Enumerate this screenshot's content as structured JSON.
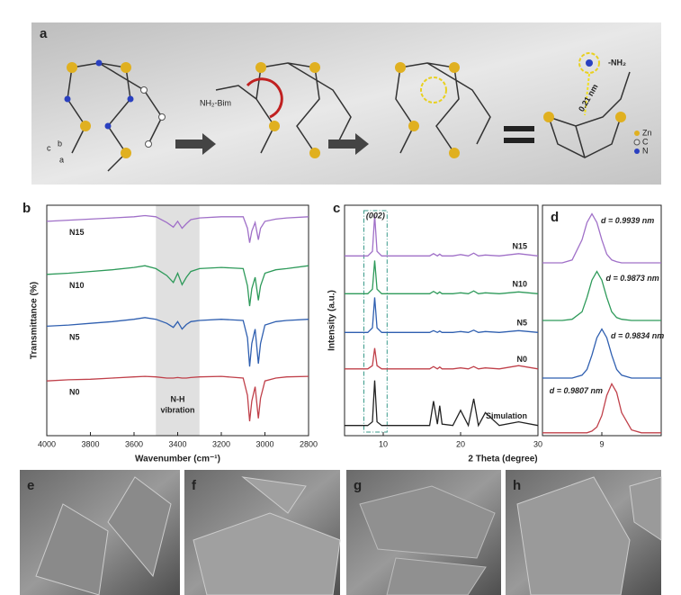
{
  "panel_a": {
    "label": "a",
    "reagent": "NH₂-Bim",
    "group": "-NH₂",
    "distance": "0.21 nm",
    "axes": [
      "c",
      "b",
      "a"
    ],
    "legend": [
      "Zn",
      "C",
      "N"
    ]
  },
  "chart_data": [
    {
      "type": "line",
      "panel_label": "b",
      "xlabel": "Wavenumber (cm⁻¹)",
      "ylabel": "Transmittance (%)",
      "x": [
        4000,
        3900,
        3800,
        3700,
        3600,
        3550,
        3500,
        3450,
        3420,
        3400,
        3380,
        3360,
        3340,
        3300,
        3200,
        3100,
        3080,
        3070,
        3060,
        3045,
        3030,
        3020,
        3000,
        2950,
        2900,
        2800
      ],
      "xlim": [
        4000,
        2800
      ],
      "xticks": [
        4000,
        3800,
        3600,
        3400,
        3200,
        3000,
        2800
      ],
      "ylim": [
        0,
        4
      ],
      "shaded_range": [
        3500,
        3300
      ],
      "annotation": [
        "N-H",
        "vibration"
      ],
      "series": [
        {
          "name": "N15",
          "color": "#a070c8",
          "values": [
            3.72,
            3.74,
            3.76,
            3.78,
            3.8,
            3.82,
            3.8,
            3.7,
            3.62,
            3.72,
            3.6,
            3.68,
            3.75,
            3.78,
            3.8,
            3.8,
            3.6,
            3.35,
            3.55,
            3.7,
            3.4,
            3.6,
            3.72,
            3.76,
            3.78,
            3.8
          ]
        },
        {
          "name": "N10",
          "color": "#2e9a5a",
          "values": [
            2.8,
            2.82,
            2.85,
            2.88,
            2.92,
            2.95,
            2.9,
            2.78,
            2.66,
            2.82,
            2.62,
            2.75,
            2.85,
            2.9,
            2.92,
            2.9,
            2.6,
            2.25,
            2.55,
            2.75,
            2.35,
            2.6,
            2.82,
            2.88,
            2.9,
            2.95
          ]
        },
        {
          "name": "N5",
          "color": "#2f5fb0",
          "values": [
            1.9,
            1.92,
            1.95,
            1.98,
            2.02,
            2.05,
            2.02,
            1.95,
            1.88,
            1.98,
            1.85,
            1.93,
            1.98,
            2.0,
            2.02,
            2.0,
            1.7,
            1.2,
            1.6,
            1.85,
            1.25,
            1.6,
            1.92,
            1.98,
            2.0,
            2.02
          ]
        },
        {
          "name": "N0",
          "color": "#c0404a",
          "values": [
            0.95,
            0.97,
            0.98,
            1.0,
            1.02,
            1.03,
            1.02,
            1.0,
            1.0,
            1.01,
            1.0,
            1.0,
            1.01,
            1.02,
            1.03,
            1.0,
            0.7,
            0.25,
            0.6,
            0.85,
            0.3,
            0.65,
            0.95,
            1.0,
            1.02,
            1.03
          ]
        }
      ]
    },
    {
      "type": "line",
      "panel_label": "c",
      "xlabel": "2 Theta (degree)",
      "ylabel": "Intensity (a.u.)",
      "x": [
        5,
        8,
        8.6,
        8.9,
        9.2,
        9.8,
        12,
        16,
        16.5,
        17,
        17.3,
        17.6,
        19,
        20,
        21,
        21.7,
        22.3,
        23.2,
        25,
        27.5,
        30
      ],
      "xlim": [
        5,
        30
      ],
      "xticks": [
        10,
        20,
        30
      ],
      "ylim": [
        0,
        5
      ],
      "highlight_range": [
        7.5,
        10.5
      ],
      "annotation": "(002)",
      "series": [
        {
          "name": "N15",
          "color": "#a070c8",
          "values": [
            3.9,
            3.9,
            4.0,
            4.78,
            4.0,
            3.9,
            3.9,
            3.9,
            3.95,
            3.9,
            3.94,
            3.9,
            3.9,
            3.93,
            3.9,
            3.96,
            3.9,
            3.92,
            3.9,
            3.95,
            3.9
          ]
        },
        {
          "name": "N10",
          "color": "#2e9a5a",
          "values": [
            3.08,
            3.08,
            3.18,
            3.8,
            3.18,
            3.08,
            3.08,
            3.08,
            3.13,
            3.08,
            3.12,
            3.08,
            3.08,
            3.1,
            3.08,
            3.14,
            3.08,
            3.1,
            3.08,
            3.12,
            3.08
          ]
        },
        {
          "name": "N5",
          "color": "#2f5fb0",
          "values": [
            2.24,
            2.24,
            2.34,
            3.0,
            2.34,
            2.24,
            2.24,
            2.24,
            2.28,
            2.24,
            2.27,
            2.24,
            2.24,
            2.26,
            2.24,
            2.29,
            2.24,
            2.26,
            2.24,
            2.28,
            2.24
          ]
        },
        {
          "name": "N0",
          "color": "#c0404a",
          "values": [
            1.45,
            1.45,
            1.52,
            1.9,
            1.52,
            1.45,
            1.45,
            1.45,
            1.5,
            1.45,
            1.49,
            1.45,
            1.45,
            1.47,
            1.45,
            1.5,
            1.45,
            1.47,
            1.45,
            1.52,
            1.45
          ]
        },
        {
          "name": "Simulation",
          "color": "#222222",
          "values": [
            0.22,
            0.22,
            0.3,
            1.2,
            0.3,
            0.22,
            0.22,
            0.22,
            0.75,
            0.25,
            0.65,
            0.25,
            0.22,
            0.55,
            0.22,
            0.8,
            0.22,
            0.5,
            0.22,
            0.3,
            0.22
          ]
        }
      ]
    },
    {
      "type": "line",
      "panel_label": "d",
      "x": [
        8.4,
        8.6,
        8.7,
        8.8,
        8.85,
        8.9,
        8.95,
        9.0,
        9.05,
        9.1,
        9.15,
        9.2,
        9.3,
        9.4,
        9.6
      ],
      "xlim": [
        8.4,
        9.6
      ],
      "xticks": [
        9
      ],
      "ylim": [
        0,
        4
      ],
      "series": [
        {
          "name": "d = 0.9939 nm",
          "color": "#a070c8",
          "values": [
            3.0,
            3.0,
            3.05,
            3.4,
            3.7,
            3.85,
            3.7,
            3.4,
            3.15,
            3.05,
            3.02,
            3.0,
            3.0,
            3.0,
            3.0
          ]
        },
        {
          "name": "d = 0.9873 nm",
          "color": "#2e9a5a",
          "values": [
            2.0,
            2.0,
            2.02,
            2.15,
            2.4,
            2.7,
            2.85,
            2.7,
            2.4,
            2.15,
            2.05,
            2.02,
            2.0,
            2.0,
            2.0
          ]
        },
        {
          "name": "d = 0.9834 nm",
          "color": "#2f5fb0",
          "values": [
            1.0,
            1.0,
            1.0,
            1.05,
            1.15,
            1.4,
            1.7,
            1.85,
            1.7,
            1.4,
            1.15,
            1.05,
            1.0,
            1.0,
            1.0
          ]
        },
        {
          "name": "d = 0.9807 nm",
          "color": "#c0404a",
          "values": [
            0.05,
            0.05,
            0.05,
            0.05,
            0.05,
            0.08,
            0.15,
            0.35,
            0.7,
            0.9,
            0.75,
            0.4,
            0.1,
            0.05,
            0.05
          ]
        }
      ]
    }
  ],
  "sem_panels": [
    "e",
    "f",
    "g",
    "h"
  ]
}
